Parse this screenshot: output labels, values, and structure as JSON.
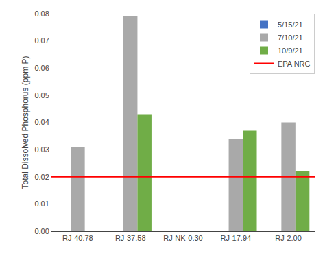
{
  "chart_data": {
    "type": "bar",
    "ylabel": "Total Dissolved Phosphorus (ppm P)",
    "categories": [
      "RJ-40.78",
      "RJ-37.58",
      "RJ-NK-0.30",
      "RJ-17.94",
      "RJ-2.00"
    ],
    "series": [
      {
        "name": "5/15/21",
        "color": "#4472C4",
        "values": [
          0.0,
          0.0,
          0.0,
          0.0,
          0.0
        ]
      },
      {
        "name": "7/10/21",
        "color": "#A9A9A9",
        "values": [
          0.031,
          0.079,
          0.0,
          0.034,
          0.04
        ]
      },
      {
        "name": "10/9/21",
        "color": "#70AD47",
        "values": [
          0.0,
          0.043,
          0.0,
          0.037,
          0.022
        ]
      }
    ],
    "hlines": [
      {
        "name": "EPA NRC",
        "value": 0.02,
        "color": "#FF0000"
      }
    ],
    "ylim": [
      0.0,
      0.08
    ],
    "yticks": [
      {
        "value": 0,
        "label": "0.00"
      },
      0.01,
      0.02,
      0.03,
      0.04,
      0.05,
      0.06,
      0.07,
      0.08
    ],
    "grid": false,
    "legend": "upper right"
  }
}
